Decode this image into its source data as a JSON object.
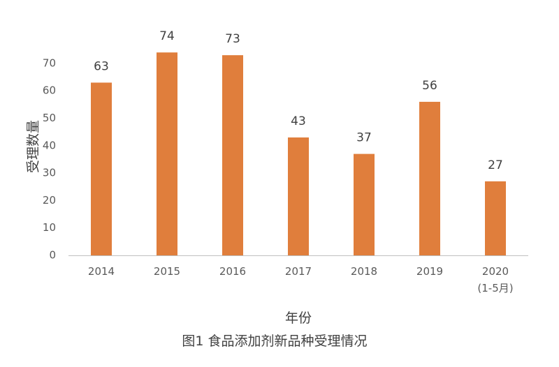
{
  "chart_data": {
    "type": "bar",
    "categories": [
      [
        "2014"
      ],
      [
        "2015"
      ],
      [
        "2016"
      ],
      [
        "2017"
      ],
      [
        "2018"
      ],
      [
        "2019"
      ],
      [
        "2020",
        "(1-5月)"
      ]
    ],
    "values": [
      63,
      74,
      73,
      43,
      37,
      56,
      27
    ],
    "xlabel": "年份",
    "ylabel": "受理数量",
    "ylim": [
      0,
      70
    ],
    "yticks": [
      0,
      10,
      20,
      30,
      40,
      50,
      60,
      70
    ],
    "data_labels": [
      "63",
      "74",
      "73",
      "43",
      "37",
      "56",
      "27"
    ],
    "bar_color": "#E07E3C",
    "grid": false,
    "legend": "none"
  },
  "caption": "图1 食品添加剂新品种受理情况"
}
